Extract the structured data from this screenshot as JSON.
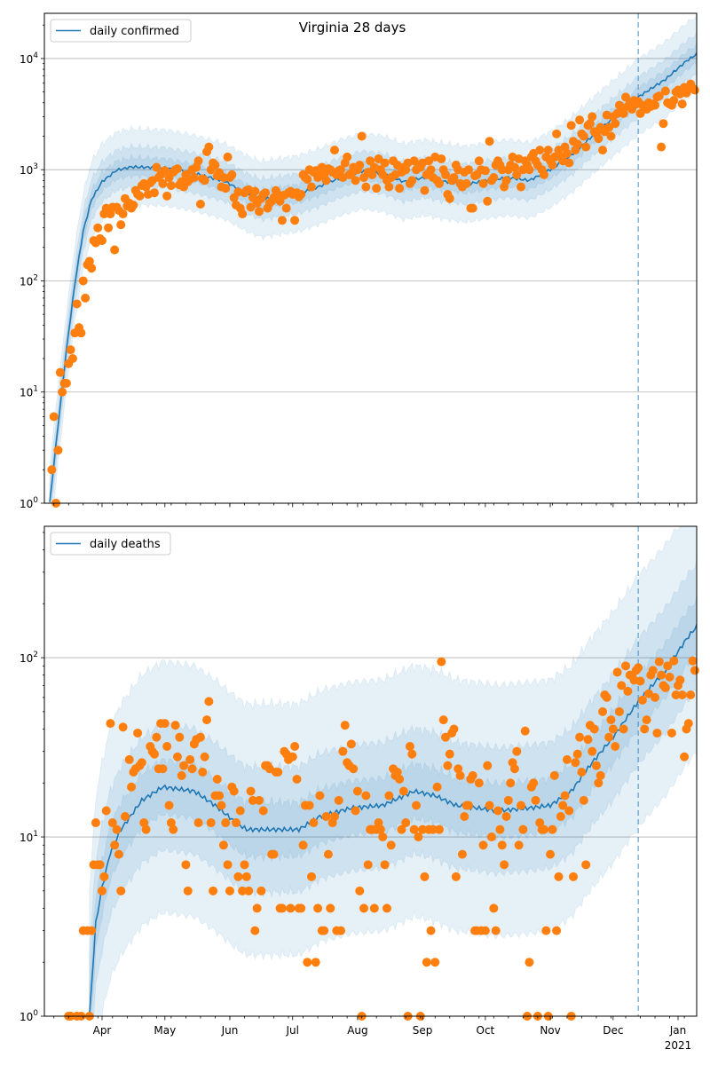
{
  "title": "Virginia 28 days",
  "colors": {
    "model": "#1f77b4",
    "observed": "#ff7f0e",
    "grid": "#b0b0b0"
  },
  "x_axis": {
    "day0": "2020-03-01",
    "xlim_days": [
      3.5,
      315
    ],
    "month_ticks": [
      {
        "day": 31,
        "label": "Apr"
      },
      {
        "day": 61,
        "label": "May"
      },
      {
        "day": 92,
        "label": "Jun"
      },
      {
        "day": 122,
        "label": "Jul"
      },
      {
        "day": 153,
        "label": "Aug"
      },
      {
        "day": 184,
        "label": "Sep"
      },
      {
        "day": 214,
        "label": "Oct"
      },
      {
        "day": 245,
        "label": "Nov"
      },
      {
        "day": 275,
        "label": "Dec"
      },
      {
        "day": 306,
        "label": "Jan"
      }
    ],
    "year_label": "2021",
    "forecast_start_day": 287
  },
  "ytick_base": "10",
  "chart_data": [
    {
      "type": "line+scatter",
      "legend": "daily confirmed",
      "legend_position": "top-left",
      "yscale": "log",
      "ylim": [
        1,
        25500
      ],
      "ytick_exponents": [
        "0",
        "1",
        "2",
        "3",
        "4"
      ],
      "grid": true,
      "median": {
        "days": [
          6,
          10,
          14,
          18,
          22,
          26,
          31,
          38,
          45,
          61,
          75,
          90,
          100,
          107,
          115,
          125,
          135,
          145,
          155,
          165,
          175,
          185,
          195,
          205,
          215,
          225,
          235,
          245,
          255,
          265,
          275,
          287,
          300,
          310,
          315
        ],
        "values": [
          1,
          5,
          24,
          94,
          280,
          540,
          780,
          990,
          1060,
          1040,
          930,
          780,
          610,
          540,
          570,
          610,
          710,
          850,
          970,
          920,
          780,
          850,
          780,
          740,
          800,
          850,
          800,
          1000,
          1350,
          2000,
          2900,
          4500,
          6500,
          9500,
          11000
        ]
      },
      "bands_half_width_decades": [
        0.08,
        0.18,
        0.34
      ],
      "observed": {
        "start_day": 7,
        "values": [
          2,
          6,
          1,
          3,
          15,
          10,
          12,
          12,
          18,
          24,
          20,
          34,
          62,
          38,
          34,
          100,
          70,
          140,
          150,
          130,
          230,
          220,
          300,
          240,
          230,
          400,
          450,
          300,
          400,
          460,
          190,
          460,
          430,
          320,
          400,
          550,
          470,
          500,
          450,
          480,
          650,
          600,
          580,
          720,
          750,
          700,
          600,
          760,
          800,
          620,
          1050,
          850,
          900,
          750,
          980,
          580,
          850,
          720,
          950,
          1000,
          1020,
          730,
          780,
          700,
          900,
          780,
          820,
          1000,
          850,
          1050,
          1200,
          490,
          830,
          800,
          1450,
          1600,
          1000,
          1150,
          1100,
          880,
          940,
          700,
          850,
          680,
          1300,
          850,
          900,
          560,
          480,
          630,
          450,
          400,
          620,
          650,
          660,
          460,
          560,
          640,
          500,
          420,
          550,
          600,
          620,
          450,
          500,
          520,
          560,
          650,
          600,
          520,
          350,
          590,
          450,
          620,
          640,
          600,
          350,
          620,
          570,
          600,
          900,
          850,
          820,
          1000,
          700,
          950,
          980,
          850,
          1000,
          1050,
          900,
          800,
          1020,
          1000,
          950,
          1500,
          900,
          980,
          1000,
          850,
          1150,
          1300,
          900,
          920,
          1050,
          800,
          1000,
          1100,
          2000,
          850,
          700,
          950,
          1200,
          900,
          1050,
          680,
          1250,
          1000,
          900,
          1150,
          800,
          700,
          850,
          1200,
          900,
          1100,
          680,
          950,
          1050,
          1000,
          1150,
          750,
          800,
          1200,
          1000,
          1100,
          1050,
          1150,
          650,
          900,
          1200,
          1000,
          850,
          1300,
          800,
          750,
          1250,
          1000,
          900,
          600,
          550,
          800,
          850,
          1100,
          1000,
          750,
          700,
          950,
          750,
          1000,
          450,
          450,
          880,
          900,
          1200,
          1000,
          750,
          980,
          520,
          1800,
          800,
          850,
          1100,
          1200,
          1100,
          1000,
          700,
          800,
          1000,
          1100,
          1300,
          1050,
          900,
          1250,
          700,
          1000,
          1200,
          1100,
          1000,
          1300,
          1400,
          1200,
          1100,
          1500,
          1000,
          900,
          1300,
          1500,
          1200,
          1100,
          1300,
          2100,
          1500,
          1300,
          1200,
          1600,
          1400,
          1150,
          2500,
          1800,
          1500,
          1700,
          2800,
          2100,
          2000,
          1600,
          2500,
          2600,
          3000,
          2200,
          2100,
          1900,
          2400,
          1500,
          2200,
          3100,
          2400,
          2000,
          3000,
          2600,
          3200,
          3800,
          3600,
          3200,
          4500,
          3700,
          4000,
          3500,
          4200,
          3900,
          4100,
          3200,
          3800,
          3600,
          3500,
          4000,
          3700,
          3900,
          3800,
          4500,
          4600,
          1600,
          2600,
          5100,
          4000,
          3900,
          3800,
          4200,
          5000,
          5200,
          4800,
          3900,
          5500,
          4900,
          5300,
          5900,
          5400,
          5200
        ]
      }
    },
    {
      "type": "line+scatter",
      "legend": "daily deaths",
      "legend_position": "top-left",
      "yscale": "log",
      "ylim": [
        1,
        541
      ],
      "ytick_exponents": [
        "0",
        "1",
        "2"
      ],
      "grid": true,
      "median": {
        "days": [
          25,
          28,
          31,
          35,
          40,
          50,
          60,
          75,
          85,
          95,
          100,
          115,
          125,
          135,
          150,
          165,
          180,
          190,
          200,
          210,
          220,
          235,
          245,
          255,
          265,
          275,
          287,
          300,
          310,
          315
        ],
        "values": [
          1,
          3.3,
          5.2,
          8.2,
          11,
          16,
          19,
          18,
          15,
          12,
          11,
          11,
          11,
          13,
          14.5,
          15,
          18,
          17,
          15,
          14.5,
          14,
          14.5,
          15,
          18,
          26,
          36,
          57,
          85,
          127,
          150
        ]
      },
      "bands_half_width_decades": [
        0.15,
        0.35,
        0.7
      ],
      "observed": {
        "start_day": 15,
        "values": [
          1,
          1,
          0,
          0,
          1,
          0,
          1,
          3,
          0,
          3,
          1,
          3,
          7,
          12,
          7,
          7,
          5,
          6,
          14,
          0,
          43,
          12,
          9,
          11,
          8,
          5,
          41,
          13,
          0,
          27,
          19,
          23,
          24,
          38,
          25,
          26,
          12,
          11,
          0,
          32,
          30,
          29,
          36,
          24,
          43,
          24,
          43,
          32,
          15,
          12,
          11,
          42,
          28,
          36,
          22,
          25,
          7,
          5,
          27,
          24,
          33,
          35,
          12,
          36,
          23,
          28,
          45,
          57,
          12,
          5,
          17,
          21,
          17,
          15,
          9,
          12,
          7,
          5,
          19,
          18,
          12,
          6,
          14,
          5,
          7,
          6,
          5,
          18,
          16,
          3,
          4,
          16,
          5,
          14,
          25,
          25,
          24,
          8,
          8,
          23,
          23,
          4,
          4,
          30,
          29,
          27,
          4,
          28,
          32,
          21,
          4,
          4,
          9,
          15,
          2,
          15,
          6,
          12,
          2,
          4,
          17,
          3,
          3,
          13,
          8,
          4,
          12,
          13,
          3,
          16,
          3,
          30,
          42,
          26,
          25,
          33,
          24,
          14,
          18,
          5,
          1,
          4,
          17,
          7,
          11,
          11,
          4,
          11,
          12,
          11,
          10,
          7,
          4,
          17,
          9,
          24,
          22,
          23,
          21,
          11,
          18,
          12,
          1,
          32,
          29,
          11,
          15,
          10,
          1,
          11,
          6,
          2,
          11,
          3,
          11,
          2,
          19,
          11,
          95,
          45,
          36,
          25,
          29,
          38,
          40,
          6,
          24,
          22,
          8,
          13,
          15,
          15,
          21,
          22,
          3,
          3,
          20,
          3,
          9,
          3,
          25,
          15,
          10,
          4,
          3,
          14,
          11,
          9,
          7,
          13,
          16,
          20,
          26,
          24,
          30,
          9,
          15,
          11,
          39,
          1,
          2,
          19,
          20,
          16,
          1,
          12,
          11,
          11,
          3,
          1,
          8,
          11,
          22,
          3,
          6,
          13,
          15,
          17,
          27,
          14,
          1,
          6,
          26,
          29,
          36,
          23,
          16,
          7,
          35,
          42,
          30,
          40,
          25,
          20,
          22,
          50,
          62,
          60,
          36,
          45,
          40,
          32,
          83,
          50,
          70,
          40,
          90,
          65,
          80,
          80,
          75,
          85,
          88,
          74,
          58,
          40,
          45,
          63,
          80,
          85,
          60,
          38,
          95,
          80,
          70,
          68,
          90,
          78,
          38,
          96,
          62,
          70,
          75,
          62,
          28,
          40,
          43,
          62,
          96,
          85
        ]
      }
    }
  ]
}
